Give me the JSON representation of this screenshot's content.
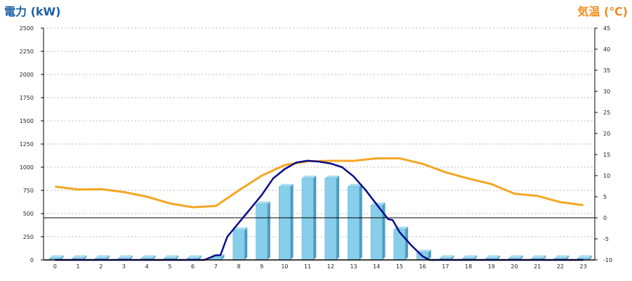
{
  "chart_data": {
    "type": "bar+line",
    "categories": [
      "0",
      "1",
      "2",
      "3",
      "4",
      "5",
      "6",
      "7",
      "8",
      "9",
      "10",
      "11",
      "12",
      "13",
      "14",
      "15",
      "16",
      "17",
      "18",
      "19",
      "20",
      "21",
      "22",
      "23"
    ],
    "left_axis": {
      "label": "電力 (kW)",
      "ylim": [
        0,
        2500
      ],
      "ticks": [
        "0",
        "250",
        "500",
        "750",
        "1000",
        "1250",
        "1500",
        "1750",
        "2000",
        "2250",
        "2500"
      ],
      "color": "#1a5fa8"
    },
    "right_axis": {
      "label": "気温 (℃)",
      "ylim": [
        -10,
        45
      ],
      "ticks": [
        "-10",
        "-5",
        "0",
        "5",
        "10",
        "15",
        "20",
        "25",
        "30",
        "35",
        "40",
        "45"
      ],
      "color": "#f08c1e"
    },
    "grid": true,
    "bars": {
      "axis": "left",
      "color": "#87ceeb",
      "values": [
        20,
        20,
        20,
        20,
        20,
        20,
        20,
        30,
        320,
        600,
        790,
        880,
        880,
        790,
        590,
        330,
        80,
        20,
        20,
        20,
        20,
        20,
        20,
        20
      ]
    },
    "power_line": {
      "axis": "left",
      "color": "#0a0a8c",
      "x": [
        0,
        1,
        2,
        3,
        4,
        5,
        6,
        6.5,
        7,
        7.2,
        7.5,
        8,
        8.5,
        9,
        9.5,
        10,
        10.5,
        11,
        11.5,
        12,
        12.5,
        13,
        13.5,
        14,
        14.5,
        14.7,
        15,
        15.5,
        16,
        16.3,
        17,
        18,
        19,
        20,
        21,
        22,
        23
      ],
      "values": [
        0,
        0,
        0,
        0,
        0,
        0,
        0,
        0,
        50,
        50,
        250,
        400,
        550,
        700,
        880,
        980,
        1050,
        1070,
        1060,
        1040,
        1000,
        900,
        760,
        600,
        440,
        430,
        300,
        160,
        40,
        0,
        0,
        0,
        0,
        0,
        0,
        0,
        0
      ]
    },
    "temperature_line": {
      "axis": "right",
      "color": "#f5a623",
      "x": [
        0,
        1,
        2,
        3,
        4,
        5,
        6,
        7,
        8,
        9,
        10,
        11,
        12,
        13,
        14,
        15,
        16,
        17,
        18,
        19,
        20,
        21,
        22,
        23
      ],
      "values": [
        7.4,
        6.7,
        6.8,
        6.1,
        5.0,
        3.4,
        2.5,
        2.8,
        6.5,
        10.0,
        12.5,
        13.4,
        13.5,
        13.5,
        14.1,
        14.1,
        12.8,
        10.8,
        9.3,
        8.0,
        5.7,
        5.2,
        3.7,
        3.0
      ]
    }
  }
}
